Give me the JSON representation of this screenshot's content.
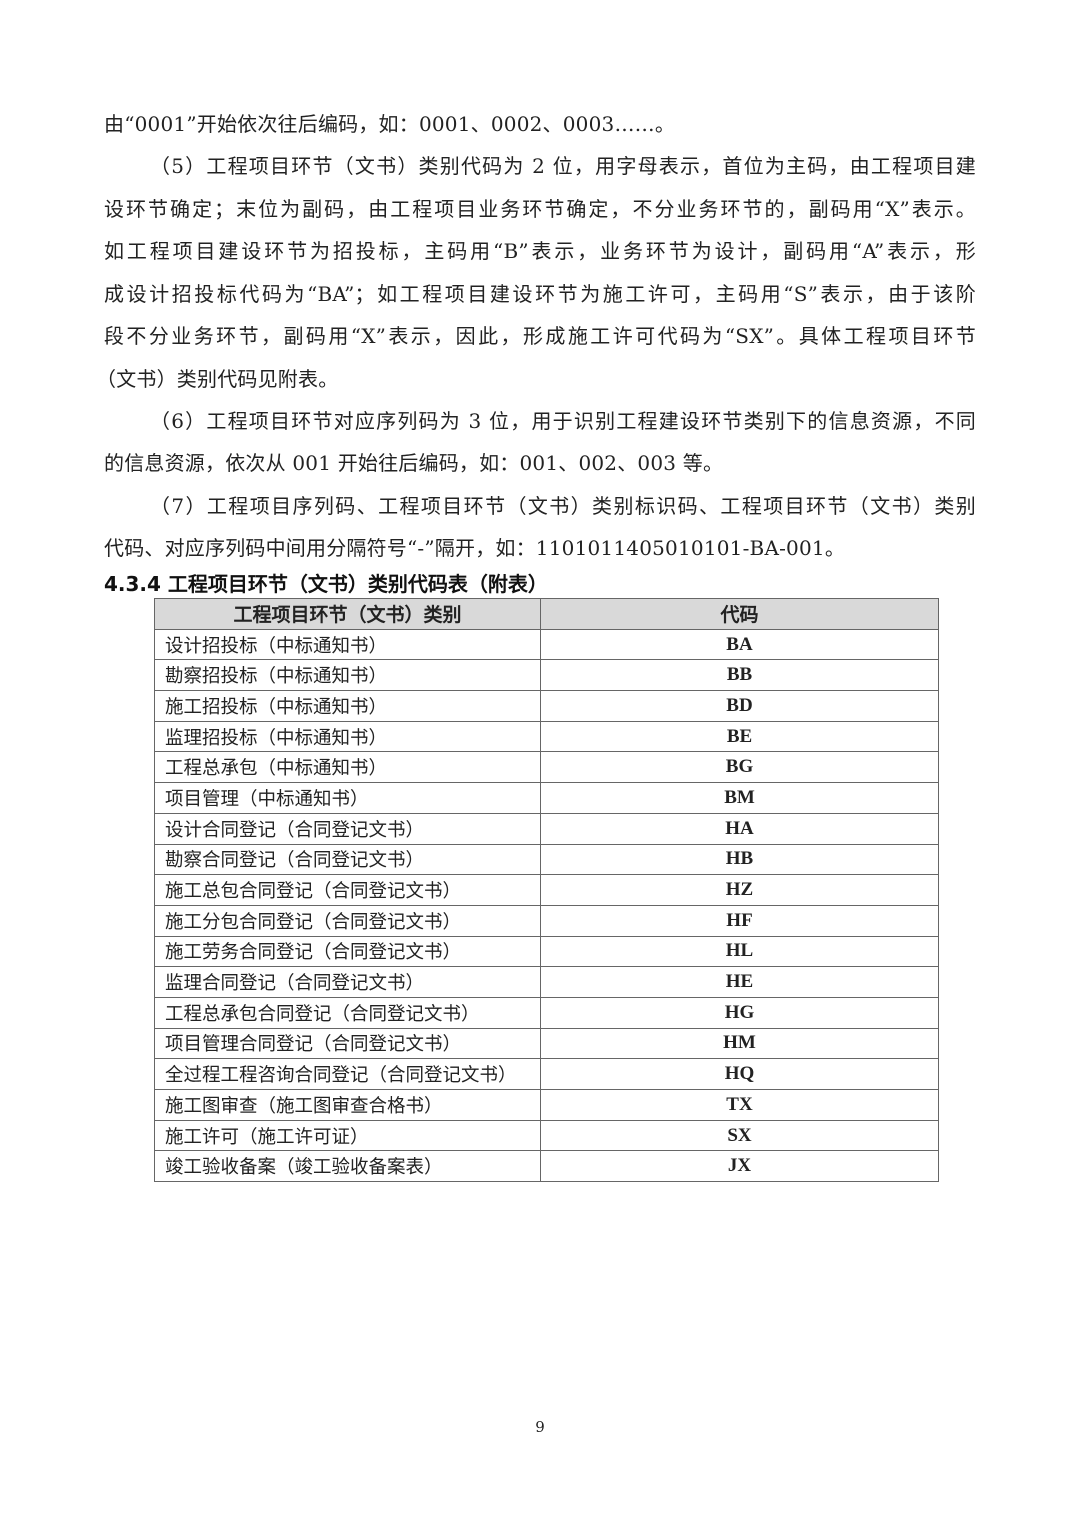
{
  "paragraph_lines": [
    "由“0001”开始依次往后编码，如：0001、0002、0003……。",
    "（5）工程项目环节（文书）类别代码为 2 位，用字母表示，首位为主码，由工程项目建",
    "设环节确定；末位为副码，由工程项目业务环节确定，不分业务环节的，副码用“X”表示。",
    "如工程项目建设环节为招投标，主码用“B”表示，业务环节为设计，副码用“A”表示，形",
    "成设计招投标代码为“BA”；如工程项目建设环节为施工许可，主码用“S”表示，由于该阶",
    "段不分业务环节，副码用“X”表示，因此，形成施工许可代码为“SX”。具体工程项目环节",
    "（文书）类别代码见附表。",
    "（6）工程项目环节对应序列码为 3 位，用于识别工程建设环节类别下的信息资源，不同",
    "的信息资源，依次从 001 开始往后编码，如：001、002、003 等。",
    "（7）工程项目序列码、工程项目环节（文书）类别标识码、工程项目环节（文书）类别",
    "代码、对应序列码中间用分隔符号“-”隔开，如：1101011405010101-BA-001。"
  ],
  "section_heading": "4.3.4 工程项目环节（文书）类别代码表（附表）",
  "table": {
    "headers": [
      "工程项目环节（文书）类别",
      "代码"
    ],
    "rows": [
      [
        "设计招投标（中标通知书）",
        "BA"
      ],
      [
        "勘察招投标（中标通知书）",
        "BB"
      ],
      [
        "施工招投标（中标通知书）",
        "BD"
      ],
      [
        "监理招投标（中标通知书）",
        "BE"
      ],
      [
        "工程总承包（中标通知书）",
        "BG"
      ],
      [
        "项目管理（中标通知书）",
        "BM"
      ],
      [
        "设计合同登记（合同登记文书）",
        "HA"
      ],
      [
        "勘察合同登记（合同登记文书）",
        "HB"
      ],
      [
        "施工总包合同登记（合同登记文书）",
        "HZ"
      ],
      [
        "施工分包合同登记（合同登记文书）",
        "HF"
      ],
      [
        "施工劳务合同登记（合同登记文书）",
        "HL"
      ],
      [
        "监理合同登记（合同登记文书）",
        "HE"
      ],
      [
        "工程总承包合同登记（合同登记文书）",
        "HG"
      ],
      [
        "项目管理合同登记（合同登记文书）",
        "HM"
      ],
      [
        "全过程工程咨询合同登记（合同登记文书）",
        "HQ"
      ],
      [
        "施工图审查（施工图审查合格书）",
        "TX"
      ],
      [
        "施工许可（施工许可证）",
        "SX"
      ],
      [
        "竣工验收备案（竣工验收备案表）",
        "JX"
      ]
    ]
  },
  "page_number": "9"
}
